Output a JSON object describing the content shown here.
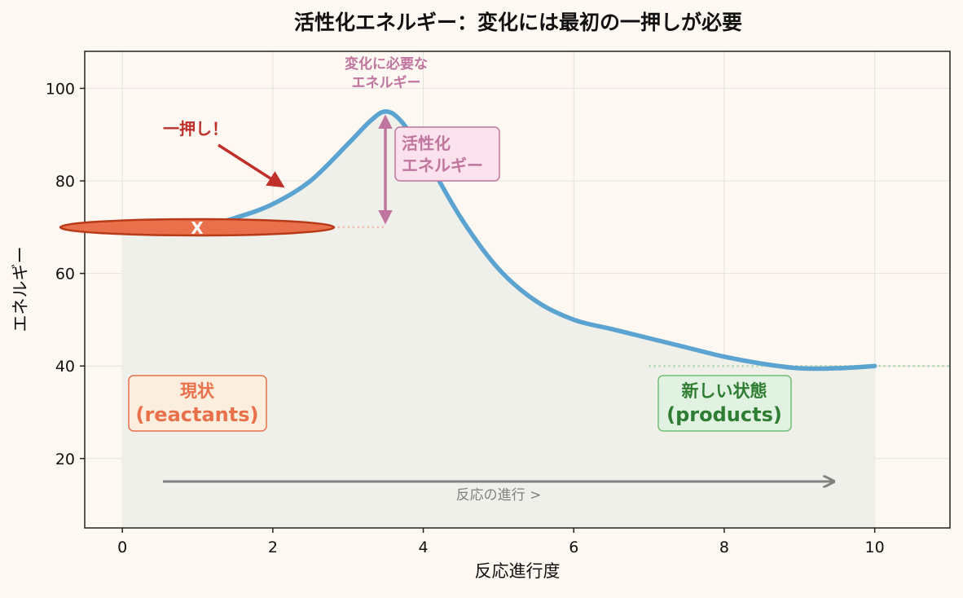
{
  "chart_data": {
    "type": "line",
    "title": "活性化エネルギー：変化には最初の一押しが必要",
    "xlabel": "反応進行度",
    "ylabel": "エネルギー",
    "xlim": [
      -0.5,
      11
    ],
    "ylim": [
      5,
      108
    ],
    "xticks": [
      0,
      2,
      4,
      6,
      8,
      10
    ],
    "yticks": [
      20,
      40,
      60,
      80,
      100
    ],
    "grid": true,
    "series": [
      {
        "x": [
          0,
          0.5,
          1.0,
          1.5,
          2.0,
          2.5,
          3.0,
          3.3,
          3.5,
          3.7,
          4.0,
          4.5,
          5.0,
          5.5,
          6.0,
          6.5,
          7.0,
          7.5,
          8.0,
          8.5,
          9.0,
          9.5,
          10.0
        ],
        "y": [
          70,
          70,
          70,
          72,
          75,
          80,
          88,
          93,
          95,
          93,
          86,
          72,
          61,
          54,
          50,
          48,
          46,
          44,
          42,
          40.5,
          39.5,
          39.5,
          40
        ],
        "color": "#5ba3d0"
      }
    ],
    "reactant_level": 70,
    "product_level": 40,
    "peak": {
      "x": 3.5,
      "y": 95
    },
    "annotations": {
      "push": "一押し！",
      "activation_energy": [
        "活性化",
        "エネルギー"
      ],
      "required_energy": [
        "変化に必要な",
        "エネルギー"
      ],
      "reactant_marker": "X",
      "reactants": [
        "現状",
        "(reactants)"
      ],
      "products": [
        "新しい状態",
        "(products)"
      ],
      "progress": "反応の進行 >"
    },
    "colors": {
      "curve": "#5ba3d0",
      "push": "#c0302b",
      "activation": "#c0759e",
      "reactants": "#e8704a",
      "products": "#2e7d32",
      "progress": "#808080",
      "plot_bg": "#fdf8f1",
      "fill": "#f0f0eb"
    }
  }
}
